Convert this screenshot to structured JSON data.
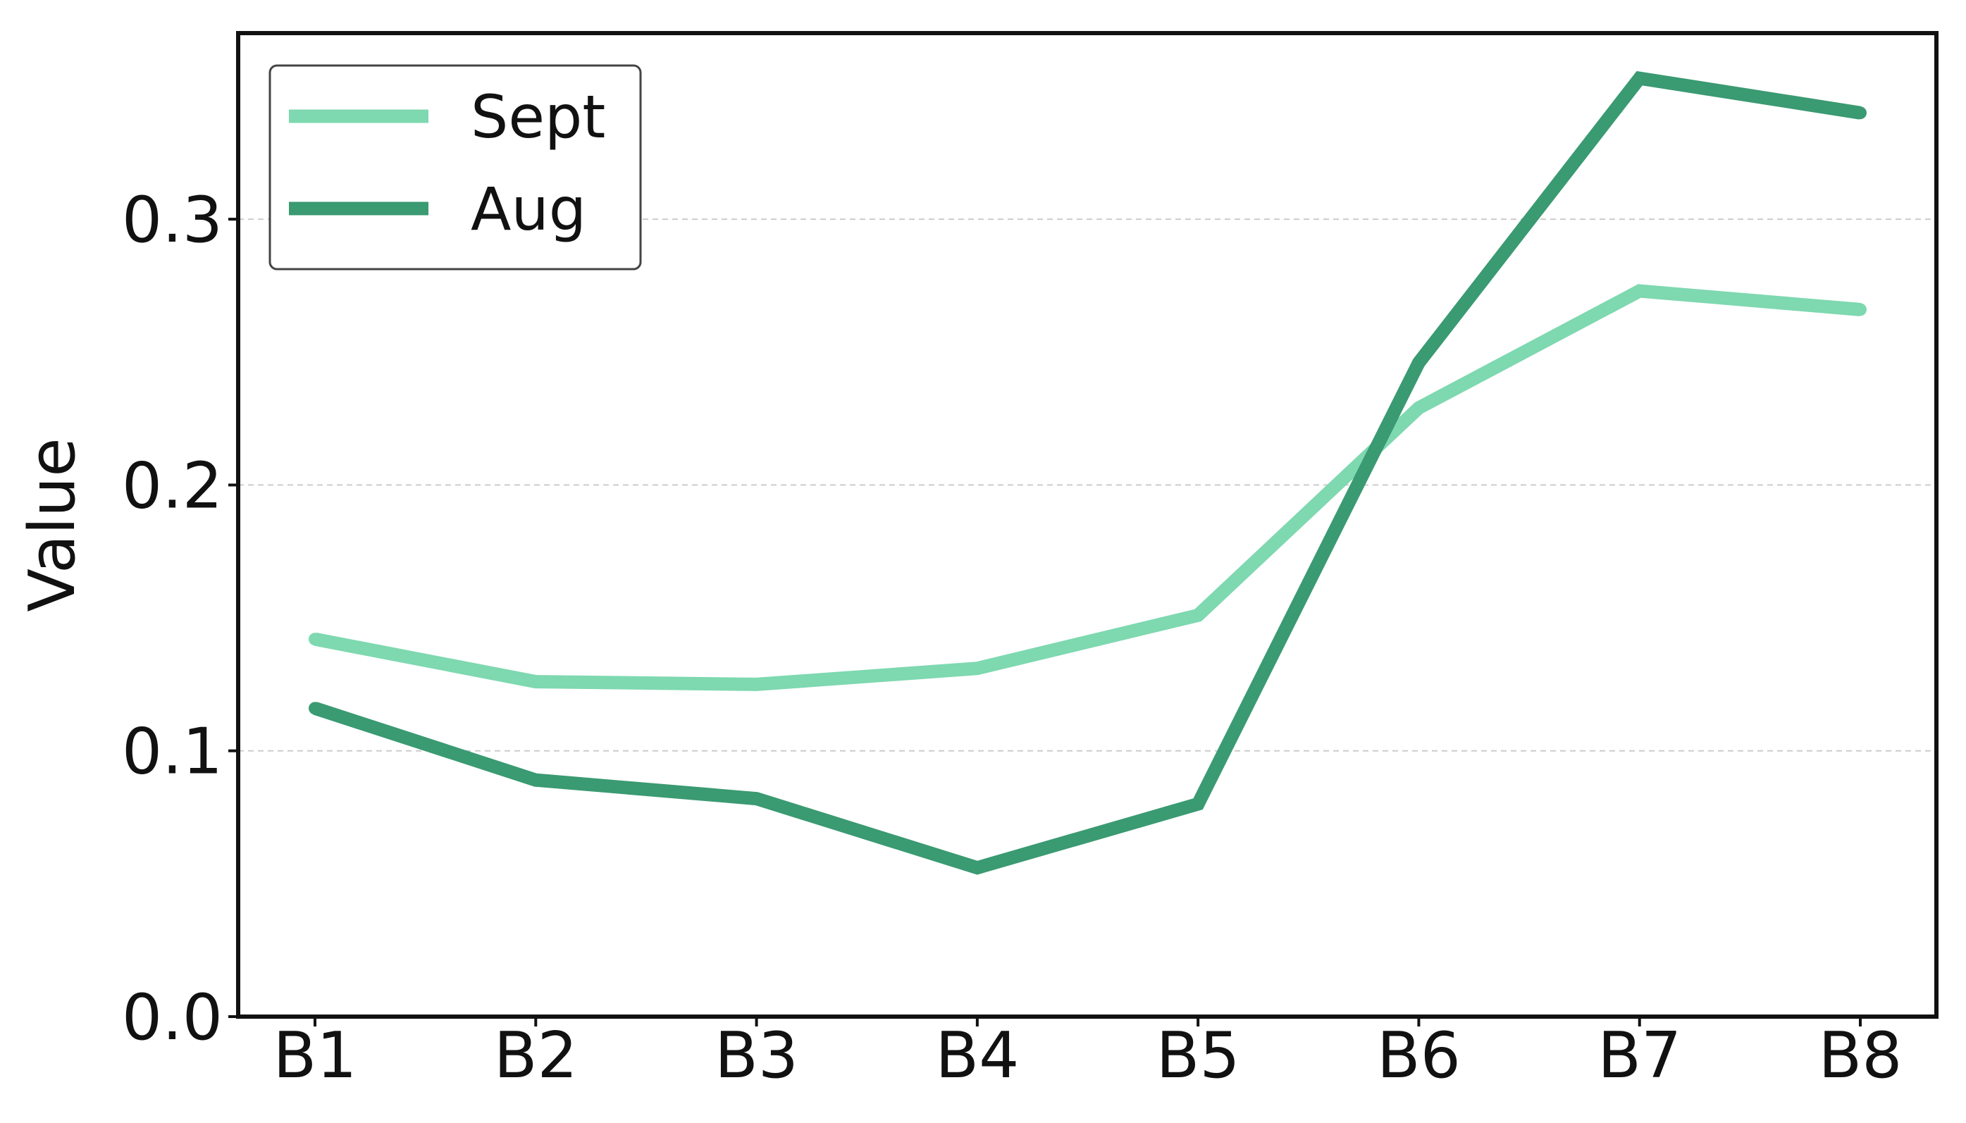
{
  "chart_data": {
    "type": "line",
    "title": "",
    "xlabel": "",
    "ylabel": "Value",
    "categories": [
      "B1",
      "B2",
      "B3",
      "B4",
      "B5",
      "B6",
      "B7",
      "B8"
    ],
    "ylim": [
      0.0,
      0.37
    ],
    "yticks": [
      0.0,
      0.1,
      0.2,
      0.3
    ],
    "ytick_labels": [
      "0.0",
      "0.1",
      "0.2",
      "0.3"
    ],
    "grid": "horizontal dashed",
    "legend_position": "top-left",
    "series": [
      {
        "name": "Sept",
        "color": "#7ed8b0",
        "values": [
          0.142,
          0.126,
          0.125,
          0.131,
          0.151,
          0.229,
          0.273,
          0.266
        ]
      },
      {
        "name": "Aug",
        "color": "#3a9a72",
        "values": [
          0.116,
          0.089,
          0.082,
          0.056,
          0.08,
          0.246,
          0.353,
          0.34
        ]
      }
    ]
  }
}
